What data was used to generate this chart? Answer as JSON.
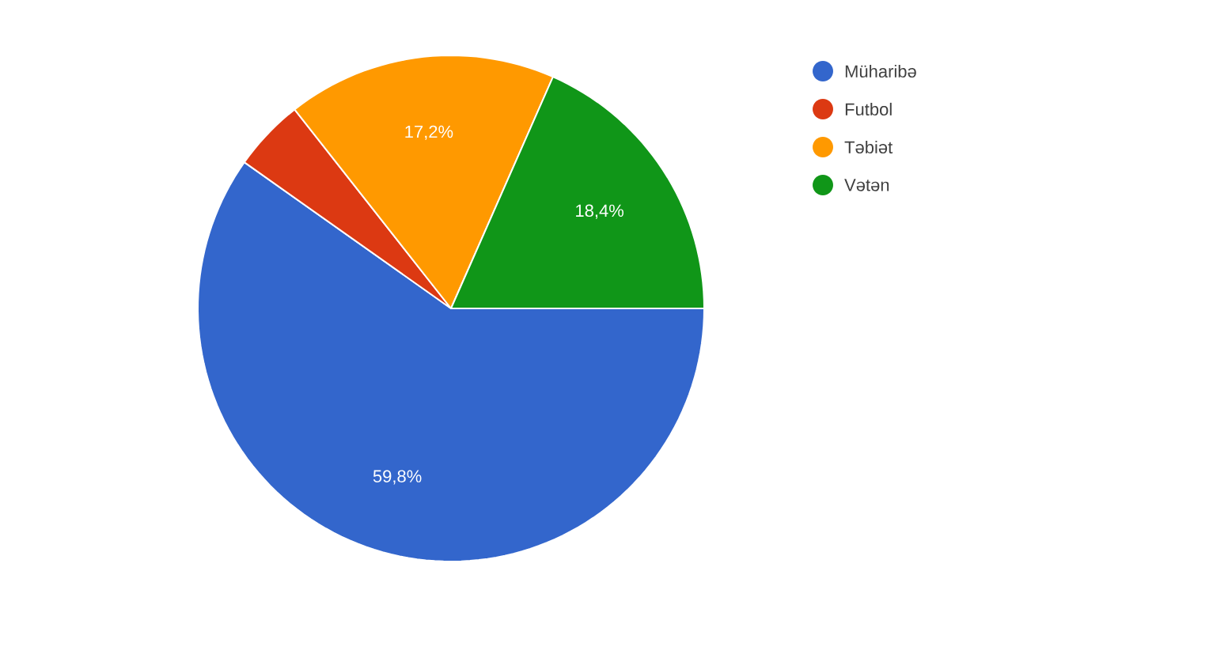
{
  "chart_data": {
    "type": "pie",
    "categories": [
      "Müharibə",
      "Futbol",
      "Təbiət",
      "Vətən"
    ],
    "values": [
      59.8,
      4.6,
      17.2,
      18.4
    ],
    "colors": [
      "#3366cc",
      "#dc3912",
      "#ff9900",
      "#109618"
    ],
    "value_labels": [
      "59,8%",
      null,
      "17,2%",
      "18,4%"
    ],
    "legend": "top right"
  }
}
